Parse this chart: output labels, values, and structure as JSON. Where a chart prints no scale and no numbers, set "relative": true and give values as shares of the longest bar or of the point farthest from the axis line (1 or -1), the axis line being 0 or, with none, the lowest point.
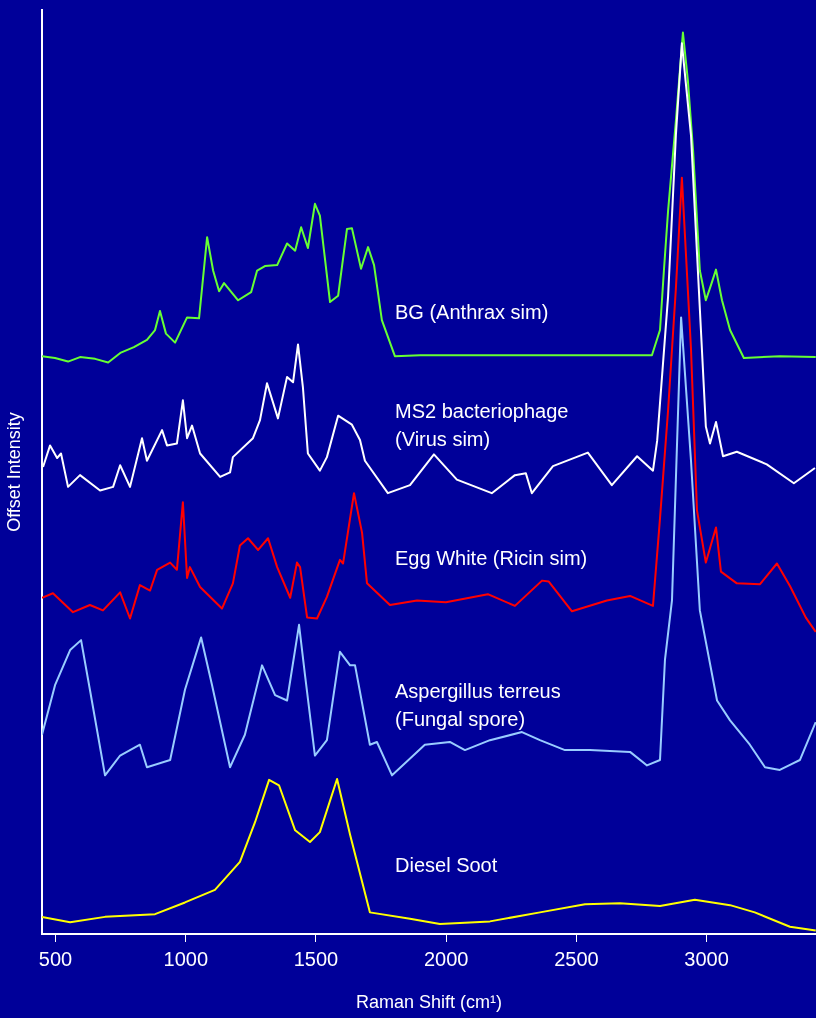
{
  "chart_data": {
    "type": "line",
    "xlabel": "Raman Shift (cm¹)",
    "ylabel": "Offset Intensity",
    "relative": true,
    "xlim": [
      448,
      3420
    ],
    "xticks": [
      500,
      1000,
      1500,
      2000,
      2500,
      3000
    ],
    "grid": false,
    "legend": false,
    "marker": "none",
    "line_style": "solid",
    "series": [
      {
        "name": "BG (Anthrax sim)",
        "color": "#66ff33",
        "x": [
          448,
          498,
          548,
          594,
          652,
          702,
          751,
          801,
          851,
          882,
          901,
          924,
          959,
          1005,
          1051,
          1082,
          1105,
          1128,
          1147,
          1201,
          1251,
          1274,
          1304,
          1351,
          1389,
          1420,
          1443,
          1469,
          1496,
          1515,
          1554,
          1585,
          1619,
          1638,
          1673,
          1700,
          1723,
          1753,
          1803,
          1900,
          2322,
          2790,
          2821,
          2836,
          2852,
          2882,
          2909,
          2928,
          2948,
          2974,
          2997,
          3017,
          3036,
          3059,
          3090,
          3143,
          3281,
          3419
        ],
        "values": [
          0.641,
          0.639,
          0.635,
          0.64,
          0.638,
          0.634,
          0.645,
          0.651,
          0.659,
          0.67,
          0.691,
          0.666,
          0.656,
          0.684,
          0.683,
          0.773,
          0.736,
          0.713,
          0.722,
          0.703,
          0.712,
          0.736,
          0.741,
          0.742,
          0.766,
          0.758,
          0.784,
          0.761,
          0.81,
          0.797,
          0.701,
          0.708,
          0.782,
          0.783,
          0.738,
          0.762,
          0.742,
          0.681,
          0.641,
          0.642,
          0.642,
          0.642,
          0.67,
          0.736,
          0.802,
          0.902,
          1,
          0.947,
          0.869,
          0.736,
          0.703,
          0.72,
          0.737,
          0.703,
          0.67,
          0.639,
          0.641,
          0.64
        ]
      },
      {
        "name": "MS2 bacteriophage\n(Virus sim)",
        "color": "#ffffff",
        "x": [
          452,
          479,
          506,
          521,
          548,
          594,
          671,
          721,
          748,
          786,
          832,
          851,
          909,
          928,
          966,
          989,
          1005,
          1024,
          1055,
          1132,
          1170,
          1181,
          1258,
          1285,
          1312,
          1354,
          1389,
          1412,
          1431,
          1450,
          1469,
          1515,
          1542,
          1585,
          1638,
          1669,
          1688,
          1776,
          1861,
          1953,
          2041,
          2175,
          2264,
          2306,
          2329,
          2410,
          2544,
          2636,
          2733,
          2794,
          2810,
          2852,
          2882,
          2905,
          2940,
          2970,
          2997,
          3013,
          3036,
          3063,
          3116,
          3231,
          3335,
          3416
        ],
        "values": [
          0.518,
          0.542,
          0.528,
          0.533,
          0.496,
          0.509,
          0.492,
          0.496,
          0.52,
          0.496,
          0.55,
          0.525,
          0.559,
          0.542,
          0.544,
          0.592,
          0.55,
          0.564,
          0.533,
          0.507,
          0.512,
          0.529,
          0.55,
          0.57,
          0.611,
          0.572,
          0.618,
          0.612,
          0.654,
          0.606,
          0.533,
          0.514,
          0.529,
          0.575,
          0.565,
          0.548,
          0.525,
          0.489,
          0.498,
          0.532,
          0.504,
          0.489,
          0.509,
          0.511,
          0.489,
          0.519,
          0.534,
          0.498,
          0.53,
          0.514,
          0.547,
          0.707,
          0.886,
          0.988,
          0.886,
          0.716,
          0.563,
          0.544,
          0.568,
          0.53,
          0.535,
          0.521,
          0.5,
          0.517
        ]
      },
      {
        "name": "Egg White (Ricin sim)",
        "color": "#ff0000",
        "x": [
          448,
          490,
          567,
          632,
          682,
          748,
          786,
          824,
          863,
          890,
          940,
          966,
          989,
          1005,
          1016,
          1055,
          1139,
          1181,
          1208,
          1239,
          1278,
          1316,
          1351,
          1401,
          1427,
          1439,
          1466,
          1504,
          1542,
          1592,
          1604,
          1646,
          1677,
          1696,
          1784,
          1888,
          1999,
          2160,
          2264,
          2368,
          2394,
          2483,
          2617,
          2706,
          2794,
          2821,
          2852,
          2882,
          2905,
          2940,
          2963,
          2997,
          3036,
          3055,
          3116,
          3205,
          3270,
          3320,
          3381,
          3419
        ],
        "values": [
          0.373,
          0.378,
          0.357,
          0.365,
          0.359,
          0.379,
          0.35,
          0.387,
          0.381,
          0.404,
          0.412,
          0.404,
          0.479,
          0.395,
          0.407,
          0.385,
          0.361,
          0.389,
          0.431,
          0.439,
          0.426,
          0.439,
          0.407,
          0.373,
          0.412,
          0.407,
          0.351,
          0.35,
          0.374,
          0.415,
          0.411,
          0.489,
          0.445,
          0.389,
          0.365,
          0.37,
          0.368,
          0.377,
          0.364,
          0.392,
          0.391,
          0.358,
          0.37,
          0.375,
          0.364,
          0.461,
          0.581,
          0.716,
          0.839,
          0.649,
          0.47,
          0.412,
          0.451,
          0.402,
          0.389,
          0.388,
          0.411,
          0.386,
          0.351,
          0.335
        ]
      },
      {
        "name": "Aspergillus terreus\n(Fungal spore)",
        "color": "#99ccff",
        "x": [
          448,
          498,
          556,
          598,
          632,
          690,
          748,
          824,
          851,
          940,
          997,
          1059,
          1101,
          1170,
          1227,
          1293,
          1343,
          1389,
          1435,
          1458,
          1496,
          1542,
          1592,
          1631,
          1650,
          1707,
          1734,
          1792,
          1918,
          2014,
          2072,
          2168,
          2291,
          2360,
          2456,
          2552,
          2706,
          2771,
          2821,
          2840,
          2867,
          2902,
          2940,
          2974,
          3040,
          3090,
          3166,
          3224,
          3281,
          3358,
          3419
        ],
        "values": [
          0.221,
          0.276,
          0.315,
          0.326,
          0.271,
          0.176,
          0.198,
          0.21,
          0.185,
          0.193,
          0.271,
          0.329,
          0.276,
          0.185,
          0.221,
          0.298,
          0.265,
          0.259,
          0.343,
          0.287,
          0.198,
          0.215,
          0.313,
          0.298,
          0.298,
          0.21,
          0.213,
          0.176,
          0.21,
          0.213,
          0.204,
          0.215,
          0.224,
          0.215,
          0.204,
          0.204,
          0.202,
          0.187,
          0.193,
          0.304,
          0.37,
          0.684,
          0.525,
          0.359,
          0.259,
          0.237,
          0.21,
          0.185,
          0.182,
          0.193,
          0.235
        ]
      },
      {
        "name": "Diesel Soot",
        "color": "#ffff00",
        "x": [
          448,
          556,
          690,
          882,
          997,
          1112,
          1208,
          1266,
          1320,
          1358,
          1420,
          1477,
          1515,
          1581,
          1631,
          1707,
          1861,
          1976,
          2168,
          2360,
          2533,
          2667,
          2821,
          2955,
          3090,
          3185,
          3320,
          3419
        ],
        "values": [
          0.019,
          0.013,
          0.019,
          0.022,
          0.035,
          0.049,
          0.08,
          0.124,
          0.171,
          0.165,
          0.115,
          0.102,
          0.113,
          0.172,
          0.11,
          0.024,
          0.017,
          0.011,
          0.014,
          0.024,
          0.033,
          0.034,
          0.031,
          0.038,
          0.032,
          0.024,
          0.008,
          0.004
        ]
      }
    ]
  }
}
